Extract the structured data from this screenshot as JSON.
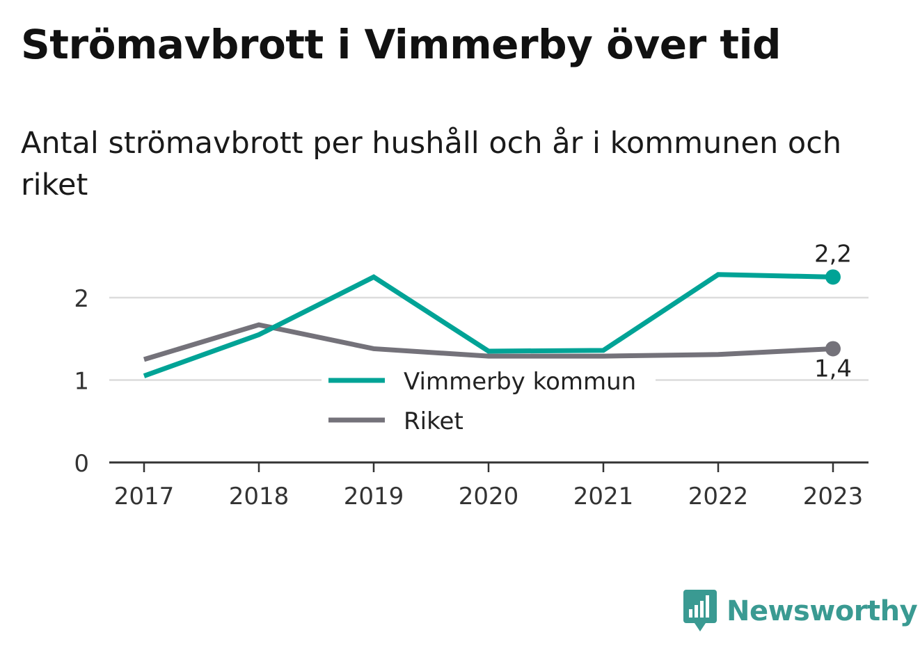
{
  "header": {
    "title": "Strömavbrott i Vimmerby över tid",
    "subtitle": "Antal strömavbrott per hushåll och år i kommunen och riket"
  },
  "brand": {
    "name": "Newsworthy",
    "color": "#3a9a92"
  },
  "chart_data": {
    "type": "line",
    "title": "Strömavbrott i Vimmerby över tid",
    "subtitle": "Antal strömavbrott per hushåll och år i kommunen och riket",
    "x": [
      "2017",
      "2018",
      "2019",
      "2020",
      "2021",
      "2022",
      "2023"
    ],
    "ylim": [
      0,
      2.7
    ],
    "yticks": [
      0,
      1,
      2
    ],
    "grid": true,
    "legend": "center",
    "series": [
      {
        "name": "Vimmerby kommun",
        "color": "#00a396",
        "values": [
          1.05,
          1.55,
          2.25,
          1.35,
          1.36,
          2.28,
          2.25
        ],
        "end_label": "2,2"
      },
      {
        "name": "Riket",
        "color": "#74727a",
        "values": [
          1.25,
          1.67,
          1.38,
          1.29,
          1.29,
          1.31,
          1.38
        ],
        "end_label": "1,4"
      }
    ]
  }
}
